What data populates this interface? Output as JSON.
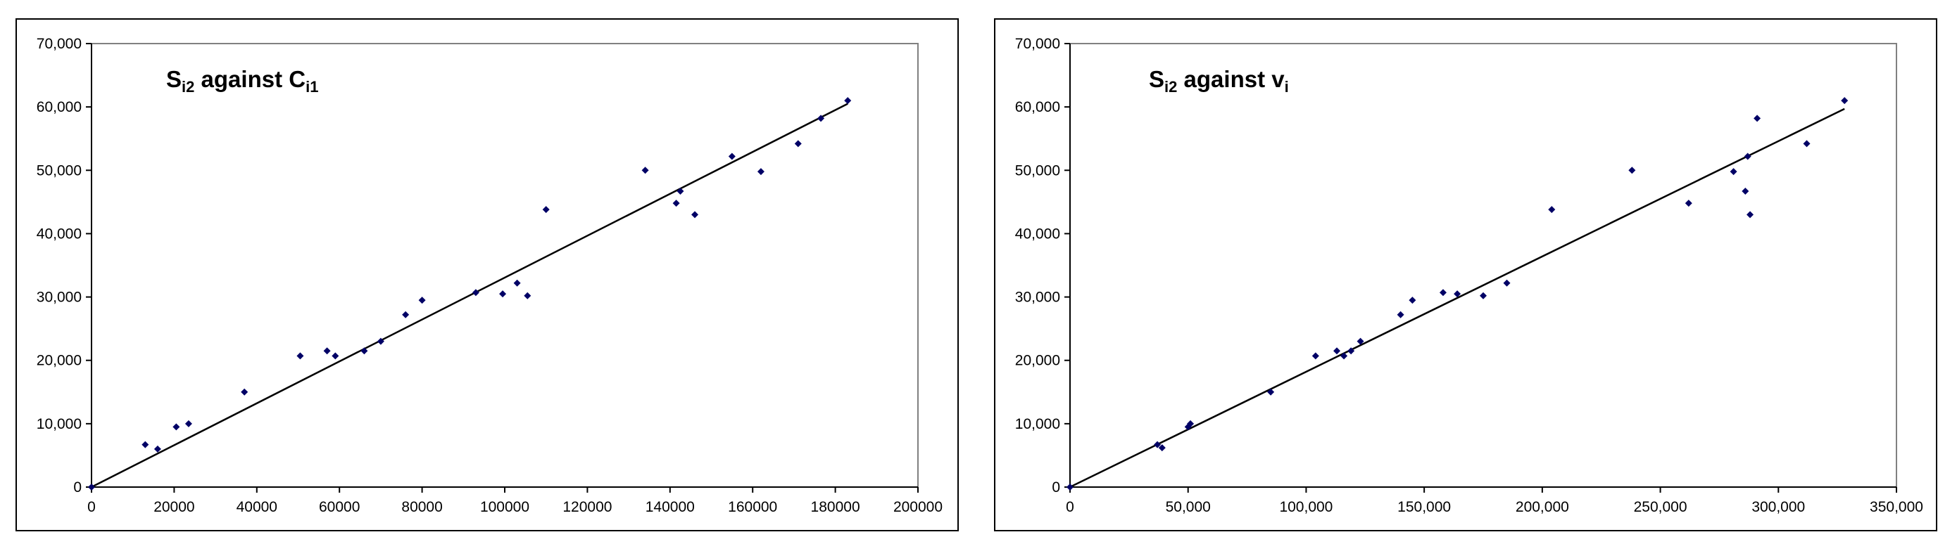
{
  "chart_data": [
    {
      "type": "scatter",
      "title": {
        "main": "S",
        "sub1": "i2",
        "mid": " against C",
        "sub2": "i1"
      },
      "ylim": [
        0,
        70000
      ],
      "xlim": [
        0,
        200000
      ],
      "yticks": [
        0,
        10000,
        20000,
        30000,
        40000,
        50000,
        60000,
        70000
      ],
      "ytick_labels": [
        "0",
        "10,000",
        "20,000",
        "30,000",
        "40,000",
        "50,000",
        "60,000",
        "70,000"
      ],
      "xticks": [
        0,
        20000,
        40000,
        60000,
        80000,
        100000,
        120000,
        140000,
        160000,
        180000,
        200000
      ],
      "xtick_labels": [
        "0",
        "20000",
        "40000",
        "60000",
        "80000",
        "100000",
        "120000",
        "140000",
        "160000",
        "180000",
        "200000"
      ],
      "grid": false,
      "marker_color": "#000066",
      "points": [
        [
          0,
          0
        ],
        [
          13000,
          6700
        ],
        [
          16000,
          6000
        ],
        [
          20500,
          9500
        ],
        [
          23500,
          10000
        ],
        [
          37000,
          15000
        ],
        [
          50500,
          20700
        ],
        [
          57000,
          21500
        ],
        [
          59000,
          20700
        ],
        [
          66000,
          21500
        ],
        [
          70000,
          23000
        ],
        [
          76000,
          27200
        ],
        [
          80000,
          29500
        ],
        [
          93000,
          30700
        ],
        [
          99500,
          30500
        ],
        [
          103000,
          32200
        ],
        [
          105500,
          30200
        ],
        [
          110000,
          43800
        ],
        [
          134000,
          50000
        ],
        [
          141500,
          44800
        ],
        [
          142500,
          46700
        ],
        [
          146000,
          43000
        ],
        [
          155000,
          52200
        ],
        [
          162000,
          49800
        ],
        [
          171000,
          54200
        ],
        [
          176500,
          58200
        ],
        [
          183000,
          61000
        ]
      ],
      "trendline": [
        [
          0,
          0
        ],
        [
          183000,
          60500
        ]
      ]
    },
    {
      "type": "scatter",
      "title": {
        "main": "S",
        "sub1": "i2",
        "mid": " against v",
        "sub2": "i"
      },
      "ylim": [
        0,
        70000
      ],
      "xlim": [
        0,
        350000
      ],
      "yticks": [
        0,
        10000,
        20000,
        30000,
        40000,
        50000,
        60000,
        70000
      ],
      "ytick_labels": [
        "0",
        "10,000",
        "20,000",
        "30,000",
        "40,000",
        "50,000",
        "60,000",
        "70,000"
      ],
      "xticks": [
        0,
        50000,
        100000,
        150000,
        200000,
        250000,
        300000,
        350000
      ],
      "xtick_labels": [
        "0",
        "50,000",
        "100,000",
        "150,000",
        "200,000",
        "250,000",
        "300,000",
        "350,000"
      ],
      "grid": false,
      "marker_color": "#000066",
      "points": [
        [
          0,
          0
        ],
        [
          37000,
          6700
        ],
        [
          39000,
          6200
        ],
        [
          50000,
          9500
        ],
        [
          51000,
          10000
        ],
        [
          85000,
          15000
        ],
        [
          104000,
          20700
        ],
        [
          113000,
          21500
        ],
        [
          116000,
          20700
        ],
        [
          119000,
          21500
        ],
        [
          123000,
          23000
        ],
        [
          140000,
          27200
        ],
        [
          145000,
          29500
        ],
        [
          158000,
          30700
        ],
        [
          164000,
          30500
        ],
        [
          175000,
          30200
        ],
        [
          185000,
          32200
        ],
        [
          204000,
          43800
        ],
        [
          238000,
          50000
        ],
        [
          262000,
          44800
        ],
        [
          281000,
          49800
        ],
        [
          286000,
          46700
        ],
        [
          287000,
          52200
        ],
        [
          288000,
          43000
        ],
        [
          291000,
          58200
        ],
        [
          312000,
          54200
        ],
        [
          328000,
          61000
        ]
      ],
      "trendline": [
        [
          0,
          0
        ],
        [
          328000,
          59700
        ]
      ]
    }
  ]
}
